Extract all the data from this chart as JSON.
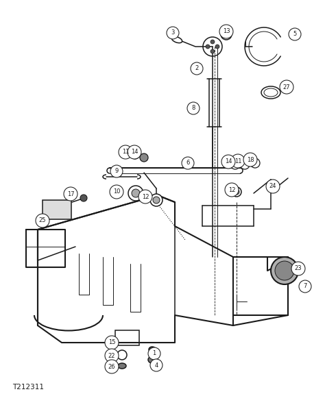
{
  "bg_color": "#ffffff",
  "line_color": "#1a1a1a",
  "label_color": "#1a1a1a",
  "title_text": "T212311",
  "figsize": [
    4.74,
    5.75
  ],
  "dpi": 100
}
